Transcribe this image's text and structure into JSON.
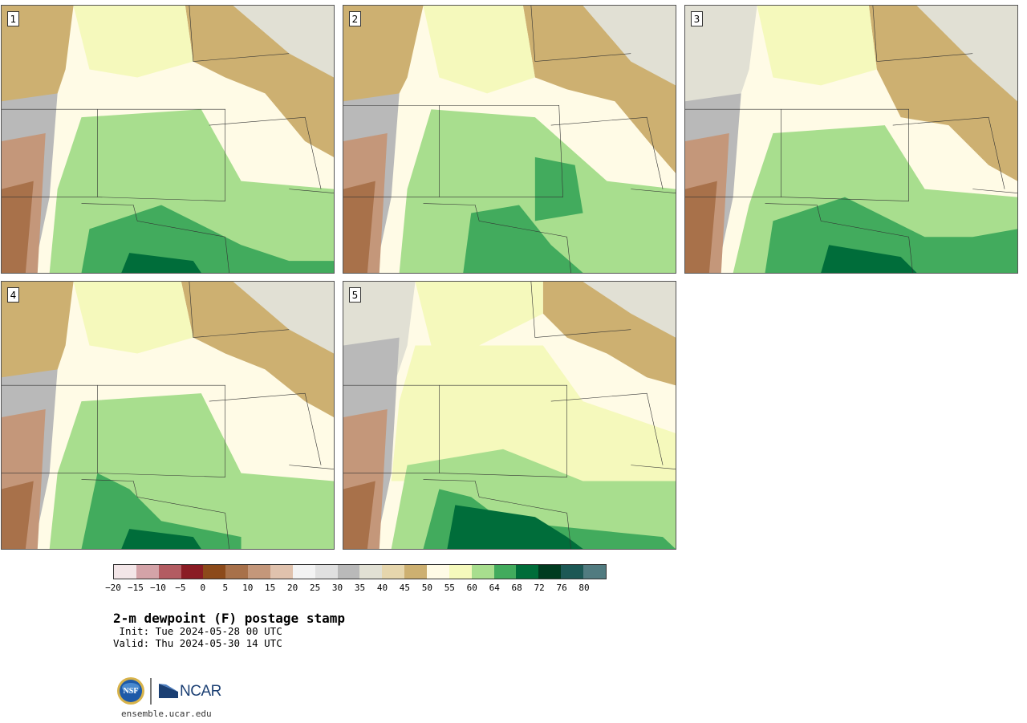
{
  "panels": [
    {
      "label": "1"
    },
    {
      "label": "2"
    },
    {
      "label": "3"
    },
    {
      "label": "4"
    },
    {
      "label": "5"
    }
  ],
  "colorbar": {
    "colors": [
      "#f3e6e8",
      "#d4a3a8",
      "#b35c62",
      "#8a1c24",
      "#8c4a1a",
      "#a8714a",
      "#c4977a",
      "#e0c2ad",
      "#f3f3f3",
      "#e0e0e0",
      "#b9b9b9",
      "#e1e0d4",
      "#e6d6ad",
      "#cdb071",
      "#fffbe6",
      "#f5f9bc",
      "#a8de8e",
      "#42ab5d",
      "#006d3a",
      "#003b20",
      "#1c5855",
      "#517b80"
    ],
    "ticks": [
      "−20",
      "−15",
      "−10",
      "−5",
      "0",
      "5",
      "10",
      "15",
      "20",
      "25",
      "30",
      "35",
      "40",
      "45",
      "50",
      "55",
      "60",
      "64",
      "68",
      "72",
      "76",
      "80"
    ]
  },
  "title": "2-m dewpoint (F) postage stamp",
  "init": " Init: Tue 2024-05-28 00 UTC",
  "valid": "Valid: Thu 2024-05-30 14 UTC",
  "logos": {
    "nsf": "NSF",
    "ncar": "NCAR"
  },
  "url": "ensemble.ucar.edu"
}
